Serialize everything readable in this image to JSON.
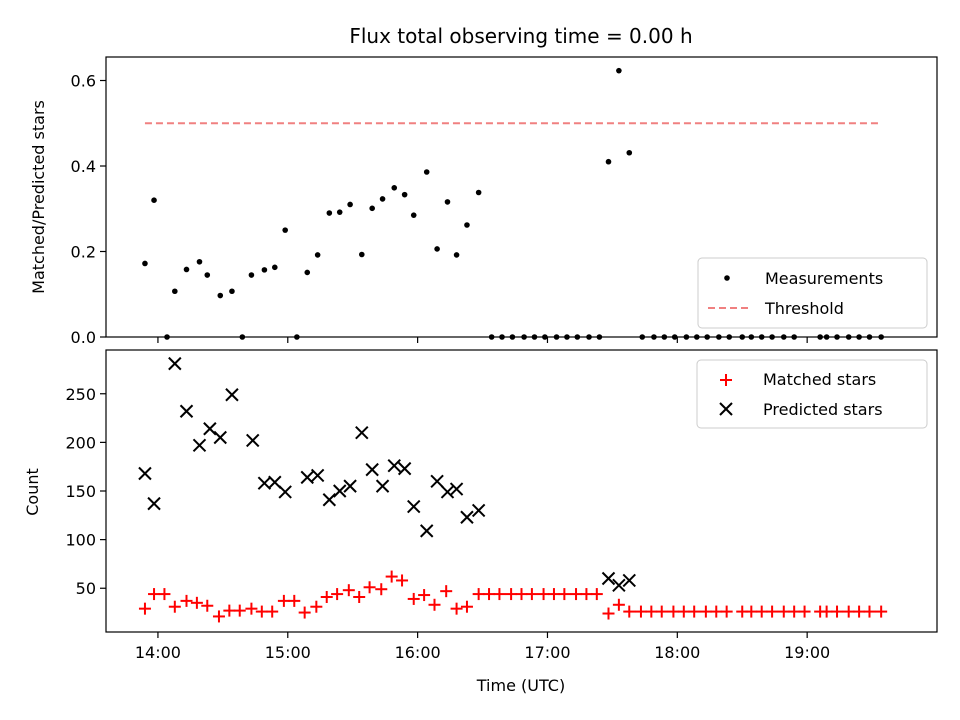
{
  "figure": {
    "title": "Flux total observing time = 0.00 h"
  },
  "chart_data": [
    {
      "type": "scatter",
      "panel": "top",
      "ylabel": "Matched/Predicted stars",
      "xlim": [
        13.6,
        20.0
      ],
      "ylim": [
        0.0,
        0.655
      ],
      "yticks": [
        0.0,
        0.2,
        0.4,
        0.6
      ],
      "ytick_labels": [
        "0.0",
        "0.2",
        "0.4",
        "0.6"
      ],
      "legend_position": "bottom-right",
      "series": [
        {
          "name": "Measurements",
          "marker": "dot",
          "color": "#000000",
          "x": [
            13.9,
            13.97,
            14.07,
            14.13,
            14.22,
            14.32,
            14.38,
            14.48,
            14.57,
            14.65,
            14.72,
            14.82,
            14.9,
            14.98,
            15.07,
            15.15,
            15.23,
            15.32,
            15.4,
            15.48,
            15.57,
            15.65,
            15.73,
            15.82,
            15.9,
            15.97,
            16.07,
            16.15,
            16.23,
            16.3,
            16.38,
            16.47,
            16.57,
            16.65,
            16.73,
            16.82,
            16.9,
            16.98,
            17.07,
            17.15,
            17.23,
            17.32,
            17.4,
            17.47,
            17.55,
            17.63,
            17.73,
            17.82,
            17.9,
            17.98,
            18.07,
            18.15,
            18.23,
            18.32,
            18.4,
            18.5,
            18.57,
            18.65,
            18.73,
            18.82,
            18.9,
            19.1,
            19.15,
            19.23,
            19.32,
            19.4,
            19.48,
            19.57
          ],
          "y": [
            0.172,
            0.32,
            0.0,
            0.107,
            0.158,
            0.176,
            0.145,
            0.097,
            0.107,
            0.0,
            0.145,
            0.157,
            0.163,
            0.25,
            0.0,
            0.151,
            0.192,
            0.29,
            0.292,
            0.31,
            0.193,
            0.301,
            0.323,
            0.349,
            0.333,
            0.285,
            0.386,
            0.206,
            0.316,
            0.192,
            0.262,
            0.338,
            0.0,
            0.0,
            0.0,
            0.0,
            0.0,
            0.0,
            0.0,
            0.0,
            0.0,
            0.0,
            0.0,
            0.41,
            0.623,
            0.431,
            0.0,
            0.0,
            0.0,
            0.0,
            0.0,
            0.0,
            0.0,
            0.0,
            0.0,
            0.0,
            0.0,
            0.0,
            0.0,
            0.0,
            0.0,
            0.0,
            0.0,
            0.0,
            0.0,
            0.0,
            0.0,
            0.0
          ]
        },
        {
          "name": "Threshold",
          "marker": "dashed-line",
          "color": "#f08080",
          "x": [
            13.9,
            19.57
          ],
          "y": [
            0.5,
            0.5
          ]
        }
      ]
    },
    {
      "type": "scatter",
      "panel": "bottom",
      "xlabel": "Time (UTC)",
      "ylabel": "Count",
      "xlim": [
        13.6,
        20.0
      ],
      "ylim": [
        5,
        295
      ],
      "xticks": [
        14,
        15,
        16,
        17,
        18,
        19
      ],
      "xtick_labels": [
        "14:00",
        "15:00",
        "16:00",
        "17:00",
        "18:00",
        "19:00"
      ],
      "yticks": [
        50,
        100,
        150,
        200,
        250
      ],
      "ytick_labels": [
        "50",
        "100",
        "150",
        "200",
        "250"
      ],
      "legend_position": "top-right",
      "series": [
        {
          "name": "Matched stars",
          "marker": "plus",
          "color": "#ff0000",
          "x": [
            13.9,
            13.97,
            14.05,
            14.13,
            14.22,
            14.3,
            14.38,
            14.47,
            14.55,
            14.63,
            14.72,
            14.8,
            14.88,
            14.97,
            15.05,
            15.13,
            15.22,
            15.3,
            15.38,
            15.47,
            15.55,
            15.63,
            15.72,
            15.8,
            15.88,
            15.97,
            16.05,
            16.13,
            16.22,
            16.3,
            16.38,
            16.47,
            16.55,
            16.63,
            16.72,
            16.8,
            16.88,
            16.97,
            17.05,
            17.13,
            17.22,
            17.3,
            17.38,
            17.47,
            17.55,
            17.63,
            17.72,
            17.8,
            17.88,
            17.97,
            18.05,
            18.13,
            18.22,
            18.3,
            18.38,
            18.5,
            18.57,
            18.65,
            18.73,
            18.82,
            18.9,
            18.98,
            19.1,
            19.15,
            19.23,
            19.32,
            19.4,
            19.48,
            19.57
          ],
          "y": [
            29,
            44,
            44,
            31,
            37,
            35,
            32,
            21,
            27,
            27,
            29,
            26,
            26,
            37,
            37,
            25,
            31,
            41,
            44,
            48,
            41,
            51,
            49,
            62,
            58,
            39,
            43,
            33,
            47,
            29,
            31,
            44,
            44,
            44,
            44,
            44,
            44,
            44,
            44,
            44,
            44,
            44,
            44,
            24,
            33,
            26,
            26,
            26,
            26,
            26,
            26,
            26,
            26,
            26,
            26,
            26,
            26,
            26,
            26,
            26,
            26,
            26,
            26,
            26,
            26,
            26,
            26,
            26,
            26
          ]
        },
        {
          "name": "Predicted stars",
          "marker": "x",
          "color": "#000000",
          "x": [
            13.9,
            13.97,
            14.13,
            14.22,
            14.32,
            14.4,
            14.48,
            14.57,
            14.73,
            14.82,
            14.9,
            14.98,
            15.15,
            15.23,
            15.32,
            15.4,
            15.48,
            15.57,
            15.65,
            15.73,
            15.82,
            15.9,
            15.97,
            16.07,
            16.15,
            16.23,
            16.3,
            16.38,
            16.47,
            17.47,
            17.55,
            17.63
          ],
          "y": [
            168,
            137,
            281,
            232,
            197,
            214,
            205,
            249,
            202,
            158,
            159,
            149,
            164,
            166,
            141,
            150,
            155,
            210,
            172,
            155,
            176,
            173,
            134,
            109,
            160,
            149,
            152,
            123,
            130,
            60,
            53,
            58
          ]
        }
      ]
    }
  ]
}
